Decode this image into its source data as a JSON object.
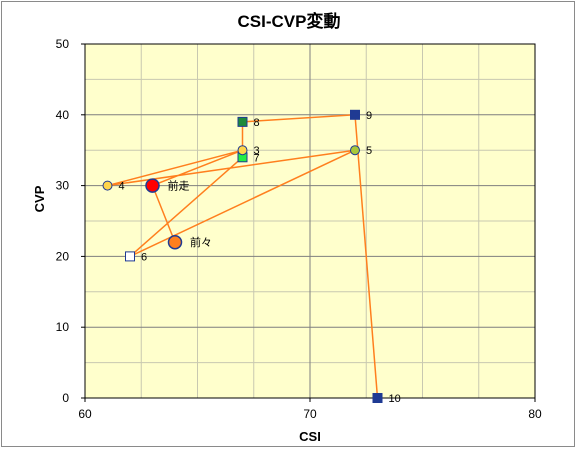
{
  "chart_data": {
    "type": "scatter",
    "title": "CSI-CVP変動",
    "xlabel": "CSI",
    "ylabel": "CVP",
    "xlim": [
      60,
      80
    ],
    "ylim": [
      0,
      50
    ],
    "x_ticks": [
      60,
      70,
      80
    ],
    "y_ticks": [
      0,
      10,
      20,
      30,
      40,
      50
    ],
    "x_minor_step": 2.5,
    "y_minor_step": 5,
    "grid": true,
    "legend": "none",
    "colors": {
      "plot_bg": "#ffffcc",
      "line": "#ff7f1e",
      "grid_major": "#7f7f7f",
      "grid_minor": "#c8c8b0"
    },
    "path_order": [
      "前々",
      "前走",
      "3",
      "4",
      "5",
      "6",
      "7",
      "8",
      "9",
      "10"
    ],
    "points": [
      {
        "label": "前々",
        "x": 64,
        "y": 22,
        "marker": "circle",
        "size": "large",
        "fill": "#ff7f1e",
        "stroke": "#1f3a93"
      },
      {
        "label": "前走",
        "x": 63,
        "y": 30,
        "marker": "circle",
        "size": "large",
        "fill": "#ff0000",
        "stroke": "#1f3a93"
      },
      {
        "label": "3",
        "x": 67,
        "y": 35,
        "marker": "circle",
        "size": "small",
        "fill": "#ffd54a",
        "stroke": "#1f3a93"
      },
      {
        "label": "4",
        "x": 61,
        "y": 30,
        "marker": "circle",
        "size": "small",
        "fill": "#ffd54a",
        "stroke": "#1f3a93"
      },
      {
        "label": "5",
        "x": 72,
        "y": 35,
        "marker": "circle",
        "size": "small",
        "fill": "#a8c83a",
        "stroke": "#1f3a93"
      },
      {
        "label": "6",
        "x": 62,
        "y": 20,
        "marker": "square",
        "size": "small",
        "fill": "#ffffff",
        "stroke": "#1f3a93"
      },
      {
        "label": "7",
        "x": 67,
        "y": 34,
        "marker": "square",
        "size": "small",
        "fill": "#22ee44",
        "stroke": "#1f3a93"
      },
      {
        "label": "8",
        "x": 67,
        "y": 39,
        "marker": "square",
        "size": "small",
        "fill": "#1e8a3a",
        "stroke": "#1f3a93"
      },
      {
        "label": "9",
        "x": 72,
        "y": 40,
        "marker": "square",
        "size": "small",
        "fill": "#1f3a93",
        "stroke": "#1f3a93"
      },
      {
        "label": "10",
        "x": 73,
        "y": 0,
        "marker": "square",
        "size": "small",
        "fill": "#1f3a93",
        "stroke": "#1f3a93"
      }
    ]
  }
}
